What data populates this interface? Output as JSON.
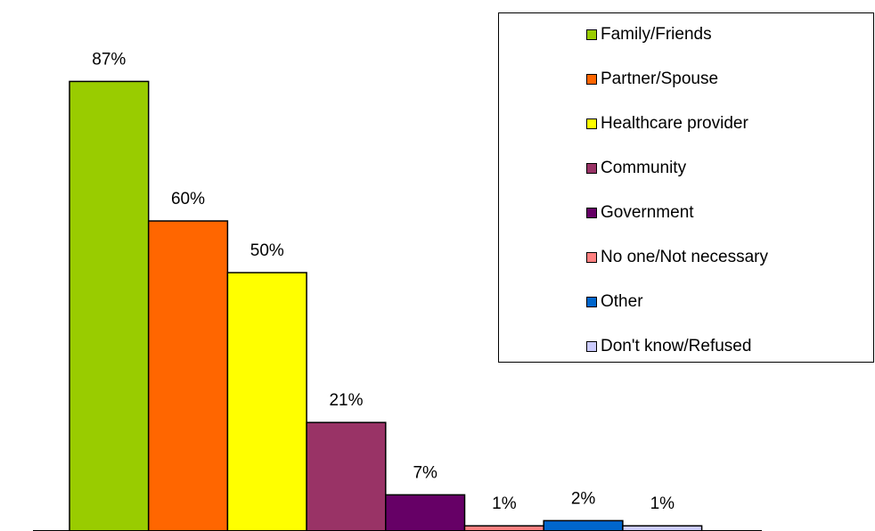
{
  "chart_data": {
    "type": "bar",
    "categories": [
      "Family/Friends",
      "Partner/Spouse",
      "Healthcare provider",
      "Community",
      "Government",
      "No one/Not necessary",
      "Other",
      "Don't know/Refused"
    ],
    "values": [
      87,
      60,
      50,
      21,
      7,
      1,
      2,
      1
    ],
    "data_labels": [
      "87%",
      "60%",
      "50%",
      "21%",
      "7%",
      "1%",
      "2%",
      "1%"
    ],
    "colors": [
      "#99CC00",
      "#FF6600",
      "#FFFF00",
      "#993366",
      "#660066",
      "#FF8080",
      "#0066CC",
      "#CCCCFF"
    ],
    "title": "",
    "xlabel": "",
    "ylabel": "",
    "ylim": [
      0,
      100
    ],
    "grid": false,
    "legend": "top-right"
  }
}
